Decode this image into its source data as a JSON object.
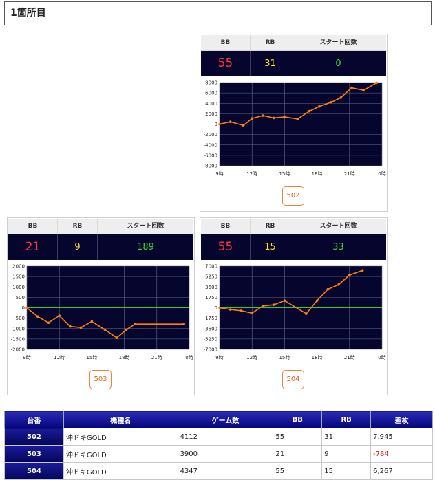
{
  "section": {
    "title": "1箇所目"
  },
  "stat_headers": {
    "bb": "BB",
    "rb": "RB",
    "start": "スタート回数"
  },
  "panels": [
    {
      "machine": "502",
      "bb": "55",
      "rb": "31",
      "start": "0"
    },
    {
      "machine": "503",
      "bb": "21",
      "rb": "9",
      "start": "189"
    },
    {
      "machine": "504",
      "bb": "55",
      "rb": "15",
      "start": "33"
    }
  ],
  "chart_data": [
    {
      "type": "line",
      "machine": "502",
      "x_ticks": [
        "9時",
        "12時",
        "15時",
        "18時",
        "21時",
        "0時"
      ],
      "y_ticks": [
        "8000",
        "6000",
        "4000",
        "2000",
        "0",
        "-2000",
        "-4000",
        "-6000",
        "-8000"
      ],
      "ylim": [
        -8000,
        8000
      ],
      "xlim": [
        9,
        24
      ],
      "x": [
        9.0,
        10.0,
        11.2,
        12.0,
        13.0,
        14.0,
        15.0,
        16.2,
        17.3,
        18.2,
        19.3,
        20.2,
        21.2,
        22.3,
        23.5
      ],
      "y": [
        0,
        450,
        -250,
        1100,
        1650,
        1200,
        1400,
        1000,
        2500,
        3400,
        4200,
        5100,
        7000,
        6500,
        7945
      ],
      "grid": true,
      "colors": {
        "line": "#ff7f0e",
        "zero": "#33cc33",
        "bg": "#05052e",
        "grid": "#6a6a8a"
      }
    },
    {
      "type": "line",
      "machine": "503",
      "x_ticks": [
        "9時",
        "12時",
        "15時",
        "18時",
        "21時",
        "0時"
      ],
      "y_ticks": [
        "2000",
        "1500",
        "1000",
        "500",
        "0",
        "-500",
        "-1000",
        "-1500",
        "-2000"
      ],
      "ylim": [
        -2000,
        2000
      ],
      "xlim": [
        9,
        24
      ],
      "x": [
        9.0,
        10.0,
        11.0,
        12.0,
        13.0,
        14.0,
        15.0,
        16.2,
        17.3,
        18.2,
        19.0,
        23.5
      ],
      "y": [
        0,
        -420,
        -720,
        -380,
        -900,
        -950,
        -660,
        -1050,
        -1440,
        -1050,
        -784,
        -784
      ],
      "grid": true,
      "colors": {
        "line": "#ff7f0e",
        "zero": "#33cc33",
        "bg": "#05052e",
        "grid": "#6a6a8a"
      }
    },
    {
      "type": "line",
      "machine": "504",
      "x_ticks": [
        "9時",
        "12時",
        "15時",
        "18時",
        "21時",
        "0時"
      ],
      "y_ticks": [
        "7000",
        "5250",
        "3500",
        "1750",
        "0",
        "-1750",
        "-3500",
        "-5250",
        "-7000"
      ],
      "ylim": [
        -7000,
        7000
      ],
      "xlim": [
        9,
        24
      ],
      "x": [
        9.0,
        10.0,
        11.0,
        12.0,
        13.0,
        14.0,
        15.0,
        17.0,
        18.0,
        19.0,
        20.0,
        21.0,
        22.2
      ],
      "y": [
        0,
        -300,
        -500,
        -900,
        300,
        500,
        1200,
        -1000,
        1200,
        3100,
        3900,
        5500,
        6267
      ],
      "grid": true,
      "colors": {
        "line": "#ff7f0e",
        "zero": "#33cc33",
        "bg": "#05052e",
        "grid": "#6a6a8a"
      }
    }
  ],
  "summary": {
    "headers": [
      "台番",
      "機種名",
      "ゲーム数",
      "BB",
      "RB",
      "差枚"
    ],
    "rows": [
      {
        "num": "502",
        "name": "沖ドキGOLD",
        "games": "4112",
        "bb": "55",
        "rb": "31",
        "diff": "7,945",
        "negative": false
      },
      {
        "num": "503",
        "name": "沖ドキGOLD",
        "games": "3900",
        "bb": "21",
        "rb": "9",
        "diff": "-784",
        "negative": true
      },
      {
        "num": "504",
        "name": "沖ドキGOLD",
        "games": "4347",
        "bb": "55",
        "rb": "15",
        "diff": "6,267",
        "negative": false
      }
    ]
  }
}
